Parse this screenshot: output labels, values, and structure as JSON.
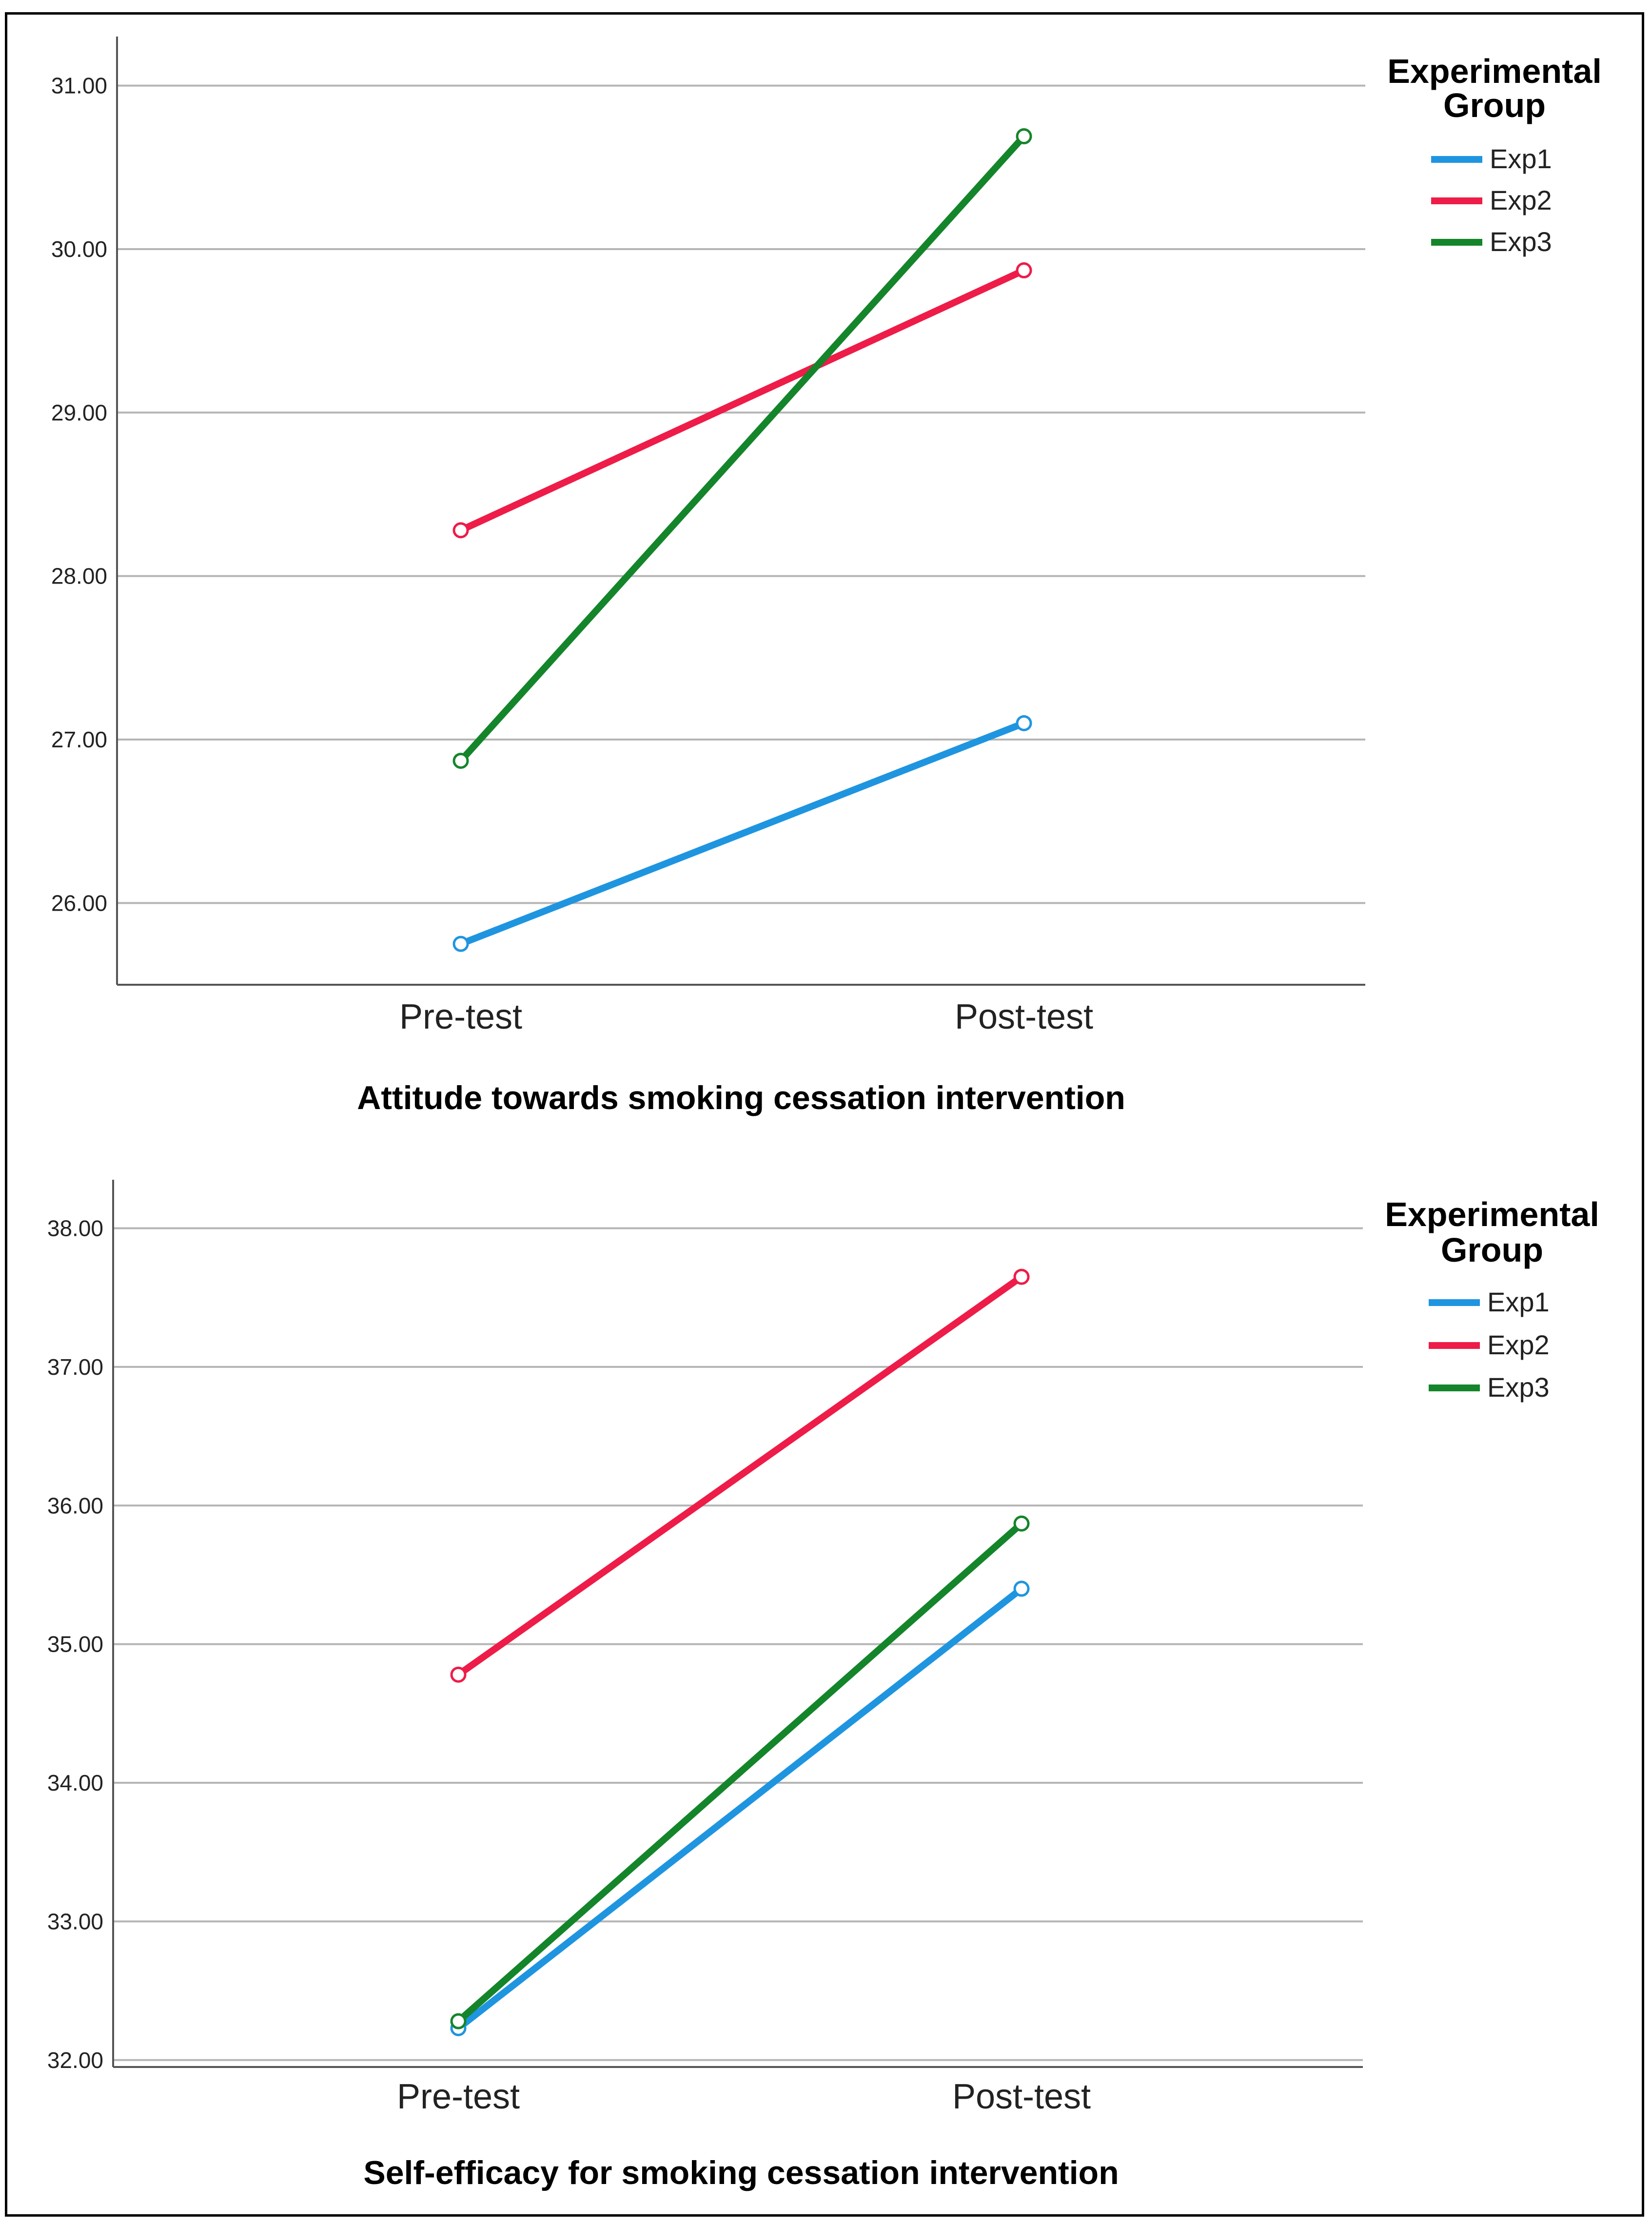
{
  "chart_data": [
    {
      "type": "line",
      "categories": [
        "Pre-test",
        "Post-test"
      ],
      "xlabel": "Attitude towards smoking cessation intervention",
      "ylabel": "",
      "ylim": [
        25.5,
        31.3
      ],
      "yticks": [
        "26.00",
        "27.00",
        "28.00",
        "29.00",
        "30.00",
        "31.00"
      ],
      "grid": true,
      "legend": {
        "title_line1": "Experimental",
        "title_line2": "Group",
        "placement": "right"
      },
      "series": [
        {
          "name": "Exp1",
          "color": "#1f95e0",
          "values": [
            25.75,
            27.1
          ]
        },
        {
          "name": "Exp2",
          "color": "#ee1c48",
          "values": [
            28.28,
            29.87
          ]
        },
        {
          "name": "Exp3",
          "color": "#14852a",
          "values": [
            26.87,
            30.69
          ]
        }
      ]
    },
    {
      "type": "line",
      "categories": [
        "Pre-test",
        "Post-test"
      ],
      "xlabel": "Self-efficacy for smoking cessation intervention",
      "ylabel": "",
      "ylim": [
        31.95,
        38.35
      ],
      "yticks": [
        "32.00",
        "33.00",
        "34.00",
        "35.00",
        "36.00",
        "37.00",
        "38.00"
      ],
      "grid": true,
      "legend": {
        "title_line1": "Experimental",
        "title_line2": "Group",
        "placement": "right"
      },
      "series": [
        {
          "name": "Exp1",
          "color": "#1f95e0",
          "values": [
            32.23,
            35.4
          ]
        },
        {
          "name": "Exp2",
          "color": "#ee1c48",
          "values": [
            34.78,
            37.65
          ]
        },
        {
          "name": "Exp3",
          "color": "#14852a",
          "values": [
            32.28,
            35.87
          ]
        }
      ]
    }
  ]
}
